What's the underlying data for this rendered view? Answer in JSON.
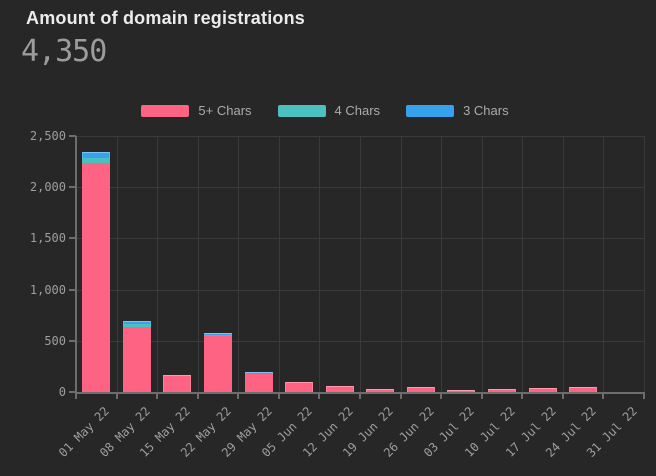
{
  "header": {
    "title": "Amount of domain registrations",
    "total": "4,350"
  },
  "legend": [
    {
      "label": "5+ Chars",
      "color": "#FF6384"
    },
    {
      "label": "4 Chars",
      "color": "#4BC0C0"
    },
    {
      "label": "3 Chars",
      "color": "#36A2EB"
    }
  ],
  "chart_data": {
    "type": "bar",
    "stacked": true,
    "title": "Amount of domain registrations",
    "total_label": "4,350",
    "categories": [
      "01 May 22",
      "08 May 22",
      "15 May 22",
      "22 May 22",
      "29 May 22",
      "05 Jun 22",
      "12 Jun 22",
      "19 Jun 22",
      "26 Jun 22",
      "03 Jul 22",
      "10 Jul 22",
      "17 Jul 22",
      "24 Jul 22",
      "31 Jul 22"
    ],
    "series": [
      {
        "name": "5+ Chars",
        "color": "#FF6384",
        "values": [
          2235,
          635,
          165,
          545,
          180,
          95,
          60,
          30,
          45,
          20,
          30,
          40,
          50,
          0
        ]
      },
      {
        "name": "4 Chars",
        "color": "#4BC0C0",
        "values": [
          55,
          30,
          0,
          10,
          0,
          0,
          0,
          0,
          0,
          0,
          0,
          0,
          0,
          0
        ]
      },
      {
        "name": "3 Chars",
        "color": "#36A2EB",
        "values": [
          55,
          30,
          0,
          25,
          15,
          0,
          0,
          0,
          0,
          0,
          0,
          0,
          0,
          0
        ]
      }
    ],
    "y_ticks": [
      {
        "value": 0,
        "label": "0"
      },
      {
        "value": 500,
        "label": "500"
      },
      {
        "value": 1000,
        "label": "1,000"
      },
      {
        "value": 1500,
        "label": "1,500"
      },
      {
        "value": 2000,
        "label": "2,000"
      },
      {
        "value": 2500,
        "label": "2,500"
      }
    ],
    "ylim": [
      0,
      2500
    ],
    "grid": true,
    "legend_position": "top",
    "xlabel": "",
    "ylabel": ""
  },
  "colors": {
    "background": "#272727",
    "grid": "#3a3a3a",
    "axis": "#6d6d6d",
    "tick_text": "#9e9e9e",
    "title_text": "#ececec",
    "total_text": "#9c9c9c"
  }
}
